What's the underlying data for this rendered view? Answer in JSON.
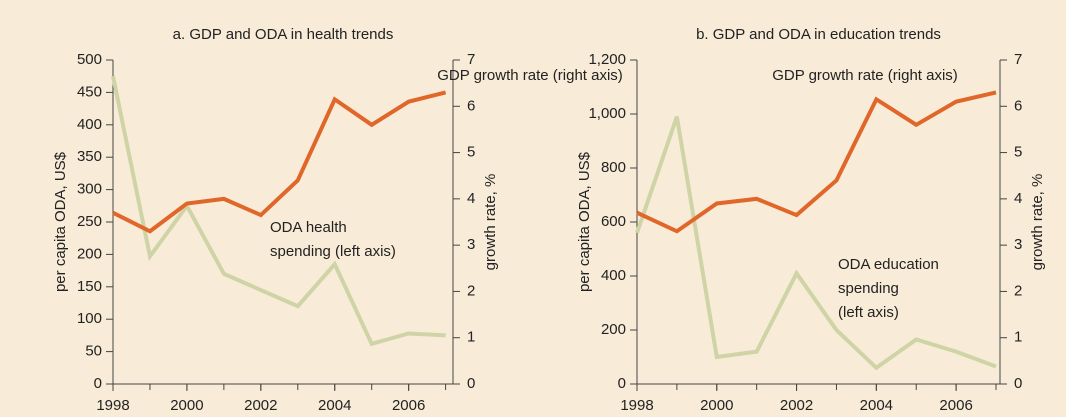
{
  "chart_data": [
    {
      "type": "line",
      "title": "a.  GDP and ODA in health trends",
      "x": [
        1998,
        1999,
        2000,
        2001,
        2002,
        2003,
        2004,
        2005,
        2006,
        2007
      ],
      "xlim": [
        1998,
        2007.2
      ],
      "xticks": [
        1998,
        2000,
        2002,
        2004,
        2006
      ],
      "ylim": [
        0,
        500
      ],
      "yticks": [
        0,
        50,
        100,
        150,
        200,
        250,
        300,
        350,
        400,
        450,
        500
      ],
      "y2lim": [
        0,
        7
      ],
      "y2ticks": [
        0,
        1,
        2,
        3,
        4,
        5,
        6,
        7
      ],
      "ylabel": "per capita ODA, US$",
      "y2label": "growth rate, %",
      "series": [
        {
          "name": "ODA health spending",
          "color": "#cfd4a6",
          "values": [
            475,
            197,
            275,
            170,
            145,
            120,
            185,
            62,
            78,
            75
          ]
        },
        {
          "name": "GDP growth rate",
          "color": "#e0662a",
          "axis": "y2",
          "values": [
            3.7,
            3.3,
            3.9,
            4.0,
            3.65,
            4.4,
            6.15,
            5.6,
            6.1,
            6.3
          ]
        }
      ],
      "annotations": [
        "GDP growth rate (right axis)",
        "ODA health",
        "spending (left axis)"
      ]
    },
    {
      "type": "line",
      "title": "b.  GDP and ODA in education trends",
      "x": [
        1998,
        1999,
        2000,
        2001,
        2002,
        2003,
        2004,
        2005,
        2006,
        2007
      ],
      "xlim": [
        1998,
        2007.1
      ],
      "xticks": [
        1998,
        2000,
        2002,
        2004,
        2006
      ],
      "ylim": [
        0,
        1200
      ],
      "yticks": [
        0,
        200,
        400,
        600,
        800,
        {
          "value": 1000,
          "label": "1,000"
        },
        {
          "value": 1200,
          "label": "1,200"
        }
      ],
      "y2lim": [
        0,
        7
      ],
      "y2ticks": [
        0,
        1,
        2,
        3,
        4,
        5,
        6,
        7
      ],
      "ylabel": "per capita ODA, US$",
      "y2label": "growth rate, %",
      "series": [
        {
          "name": "ODA education spending",
          "color": "#cfd4a6",
          "values": [
            560,
            990,
            100,
            120,
            410,
            200,
            60,
            165,
            120,
            65
          ]
        },
        {
          "name": "GDP growth rate",
          "color": "#e0662a",
          "axis": "y2",
          "values": [
            3.7,
            3.3,
            3.9,
            4.0,
            3.65,
            4.4,
            6.15,
            5.6,
            6.1,
            6.3
          ]
        }
      ],
      "annotations": [
        "GDP growth rate (right axis)",
        "ODA  education",
        "spending",
        "(left axis)"
      ]
    }
  ]
}
